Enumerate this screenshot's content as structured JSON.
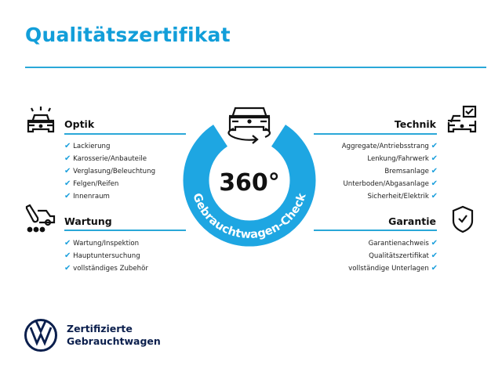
{
  "title": "Qualitätszertifikat",
  "colors": {
    "accent": "#1aa3e0",
    "text": "#111111",
    "brand_navy": "#0b1f4d"
  },
  "badge": {
    "value": "360°",
    "ring_text": "Gebrauchtwagen-Check",
    "icon": "car-rotate-icon"
  },
  "sections": {
    "optik": {
      "title": "Optik",
      "icon": "car-lights-icon",
      "items": [
        "Lackierung",
        "Karosserie/Anbauteile",
        "Verglasung/Beleuchtung",
        "Felgen/Reifen",
        "Innenraum"
      ]
    },
    "wartung": {
      "title": "Wartung",
      "icon": "service-car-icon",
      "items": [
        "Wartung/Inspektion",
        "Hauptuntersuchung",
        "vollständiges Zubehör"
      ]
    },
    "technik": {
      "title": "Technik",
      "icon": "car-checkbox-icon",
      "items": [
        "Aggregate/Antriebsstrang",
        "Lenkung/Fahrwerk",
        "Bremsanlage",
        "Unterboden/Abgasanlage",
        "Sicherheit/Elektrik"
      ]
    },
    "garantie": {
      "title": "Garantie",
      "icon": "shield-check-icon",
      "items": [
        "Garantienachweis",
        "Qualitätszertifikat",
        "vollständige Unterlagen"
      ]
    }
  },
  "check_glyph": "✔",
  "footer": {
    "line1": "Zertifizierte",
    "line2": "Gebrauchtwagen",
    "logo": "vw-logo"
  }
}
